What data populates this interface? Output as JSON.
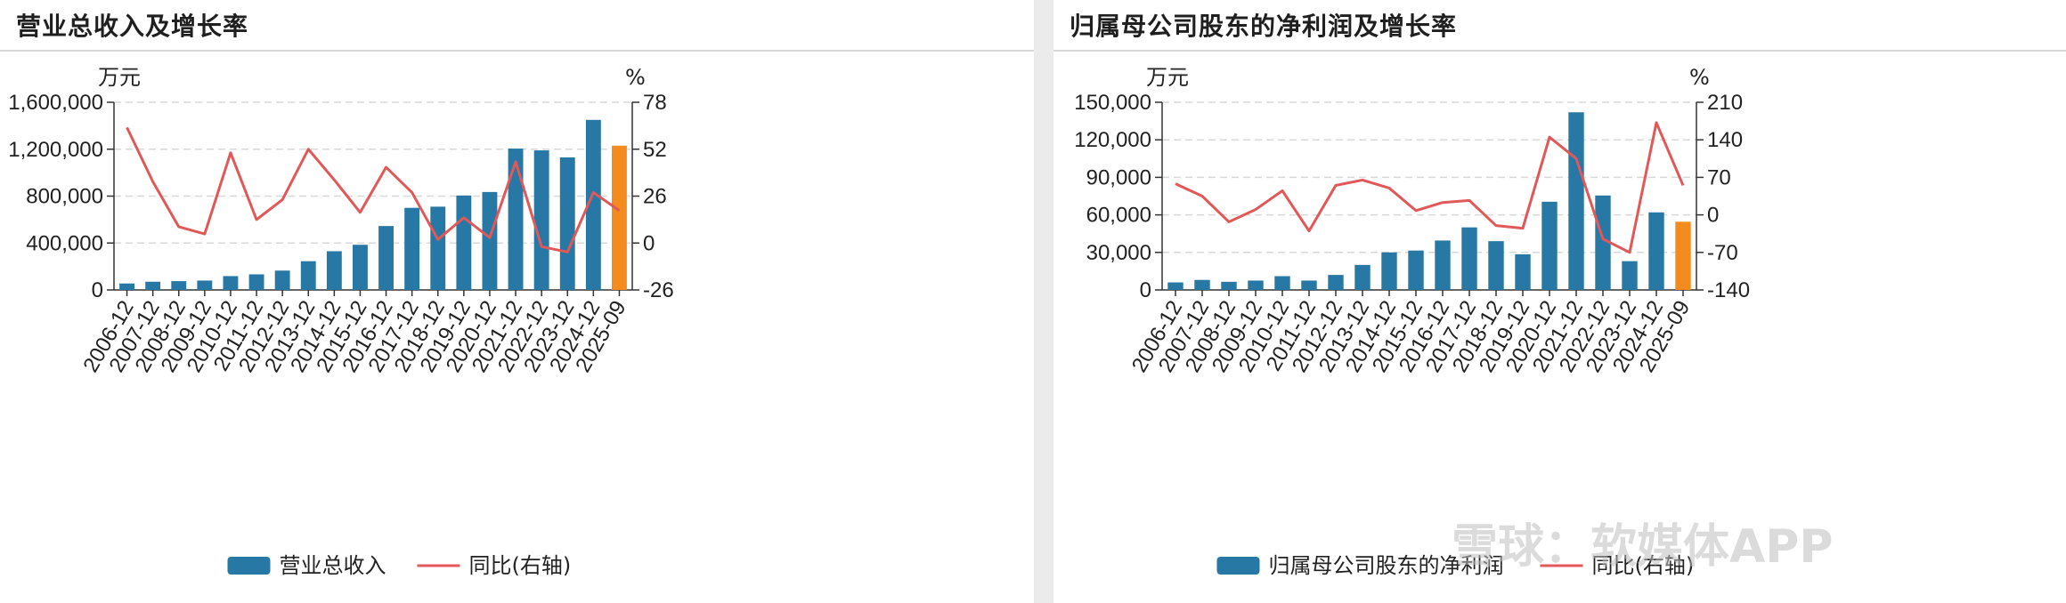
{
  "chart_data": [
    {
      "type": "bar+line",
      "title": "营业总收入及增长率",
      "left_unit": "万元",
      "right_unit": "%",
      "categories": [
        "2006-12",
        "2007-12",
        "2008-12",
        "2009-12",
        "2010-12",
        "2011-12",
        "2012-12",
        "2013-12",
        "2014-12",
        "2015-12",
        "2016-12",
        "2017-12",
        "2018-12",
        "2019-12",
        "2020-12",
        "2021-12",
        "2022-12",
        "2023-12",
        "2024-12",
        "2025-09"
      ],
      "bar_series": {
        "name": "营业总收入",
        "values": [
          55000,
          70000,
          75000,
          80000,
          118000,
          133000,
          165000,
          245000,
          330000,
          385000,
          545000,
          700000,
          710000,
          805000,
          835000,
          1205000,
          1190000,
          1130000,
          1450000,
          1230000
        ],
        "highlight_last": true
      },
      "line_series": {
        "name": "同比(右轴)",
        "values": [
          64,
          34,
          9,
          5,
          50,
          13,
          24,
          52,
          35,
          17,
          42,
          28,
          2,
          14,
          3,
          45,
          -2,
          -5,
          28,
          18
        ]
      },
      "left_axis": {
        "min": 0,
        "max": 1600000,
        "ticks": [
          0,
          400000,
          800000,
          1200000,
          1600000
        ],
        "tick_labels": [
          "0",
          "400,000",
          "800,000",
          "1,200,000",
          "1,600,000"
        ]
      },
      "right_axis": {
        "min": -26,
        "max": 78,
        "ticks": [
          -26,
          0,
          26,
          52,
          78
        ],
        "tick_labels": [
          "-26",
          "0",
          "26",
          "52",
          "78"
        ]
      },
      "colors": {
        "bar": "#2878a6",
        "highlight": "#f38b1e",
        "line": "#e05858",
        "grid": "#d8d8d8"
      },
      "legend_bar_label": "营业总收入",
      "legend_line_label": "同比(右轴)"
    },
    {
      "type": "bar+line",
      "title": "归属母公司股东的净利润及增长率",
      "left_unit": "万元",
      "right_unit": "%",
      "categories": [
        "2006-12",
        "2007-12",
        "2008-12",
        "2009-12",
        "2010-12",
        "2011-12",
        "2012-12",
        "2013-12",
        "2014-12",
        "2015-12",
        "2016-12",
        "2017-12",
        "2018-12",
        "2019-12",
        "2020-12",
        "2021-12",
        "2022-12",
        "2023-12",
        "2024-12",
        "2025-09"
      ],
      "bar_series": {
        "name": "归属母公司股东的净利润",
        "values": [
          6000,
          8000,
          6500,
          7500,
          11000,
          7500,
          12000,
          20000,
          30000,
          31500,
          39500,
          50000,
          39000,
          28500,
          70500,
          142000,
          75500,
          23000,
          62000,
          54500
        ],
        "highlight_last": true
      },
      "line_series": {
        "name": "同比(右轴)",
        "values": [
          58,
          35,
          -13,
          10,
          45,
          -30,
          55,
          65,
          50,
          8,
          23,
          27,
          -20,
          -25,
          145,
          105,
          -45,
          -70,
          172,
          55
        ]
      },
      "left_axis": {
        "min": 0,
        "max": 150000,
        "ticks": [
          0,
          30000,
          60000,
          90000,
          120000,
          150000
        ],
        "tick_labels": [
          "0",
          "30,000",
          "60,000",
          "90,000",
          "120,000",
          "150,000"
        ]
      },
      "right_axis": {
        "min": -140,
        "max": 210,
        "ticks": [
          -140,
          -70,
          0,
          70,
          140,
          210
        ],
        "tick_labels": [
          "-140",
          "-70",
          "0",
          "70",
          "140",
          "210"
        ]
      },
      "colors": {
        "bar": "#2878a6",
        "highlight": "#f38b1e",
        "line": "#e05858",
        "grid": "#d8d8d8"
      },
      "legend_bar_label": "归属母公司股东的净利润",
      "legend_line_label": "同比(右轴)"
    }
  ],
  "watermark": "雪球：软媒体APP"
}
